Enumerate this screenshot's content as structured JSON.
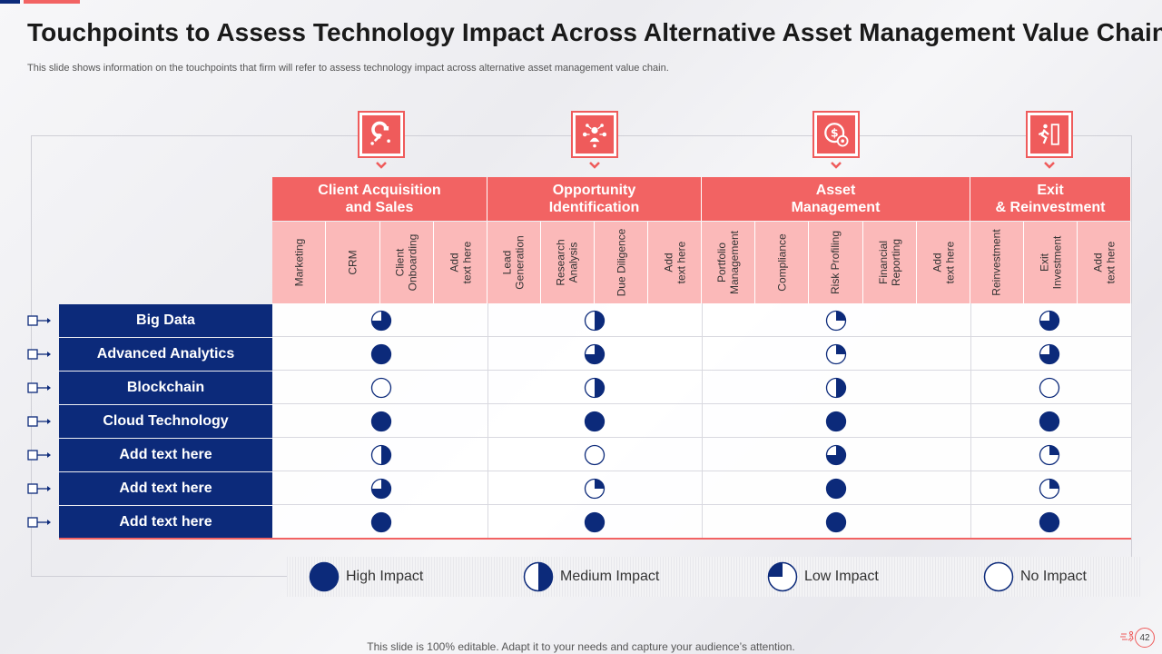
{
  "title": "Touchpoints to Assess Technology Impact Across Alternative Asset Management Value Chain",
  "subtitle": "This slide shows information on the touchpoints that firm will refer to assess technology impact across alternative asset management value chain.",
  "stages": [
    {
      "label": "Client Acquisition\nand Sales",
      "icon": "magnet-icon",
      "subs": [
        "Marketing",
        "CRM",
        "Client\nOnboarding",
        "Add\ntext here"
      ]
    },
    {
      "label": "Opportunity\nIdentification",
      "icon": "network-people-icon",
      "subs": [
        "Lead\nGeneration",
        "Research\nAnalysis",
        "Due Diligence",
        "Add\ntext here"
      ]
    },
    {
      "label": "Asset\nManagement",
      "icon": "money-gear-icon",
      "subs": [
        "Portfolio\nManagement",
        "Compliance",
        "Risk Profiling",
        "Financial\nReporting",
        "Add\ntext here"
      ]
    },
    {
      "label": "Exit\n& Reinvestment",
      "icon": "exit-door-icon",
      "subs": [
        "Reinvestment",
        "Exit\nInvestment",
        "Add\ntext here"
      ]
    }
  ],
  "rows": [
    {
      "label": "Big Data",
      "impacts": [
        0.75,
        0.5,
        0.25,
        0.75
      ]
    },
    {
      "label": "Advanced Analytics",
      "impacts": [
        1,
        0.75,
        0.25,
        0.75
      ]
    },
    {
      "label": "Blockchain",
      "impacts": [
        0,
        0.5,
        0.5,
        0
      ]
    },
    {
      "label": "Cloud Technology",
      "impacts": [
        1,
        1,
        1,
        1
      ]
    },
    {
      "label": "Add text here",
      "impacts": [
        0.5,
        0,
        0.75,
        0.25
      ]
    },
    {
      "label": "Add text here",
      "impacts": [
        0.75,
        0.25,
        1,
        0.25
      ]
    },
    {
      "label": "Add text here",
      "impacts": [
        1,
        1,
        1,
        1
      ]
    }
  ],
  "legend": [
    {
      "label": "High Impact",
      "level": 1
    },
    {
      "label": "Medium Impact",
      "level": 0.5
    },
    {
      "label": "Low Impact",
      "level": 0.25
    },
    {
      "label": "No Impact",
      "level": 0
    }
  ],
  "colors": {
    "navy": "#0c2a7a",
    "red": "#f26363",
    "pink": "#fbb9b9"
  },
  "footer": "This slide is 100% editable. Adapt it to your needs and capture your audience’s attention.",
  "page_number": "42"
}
